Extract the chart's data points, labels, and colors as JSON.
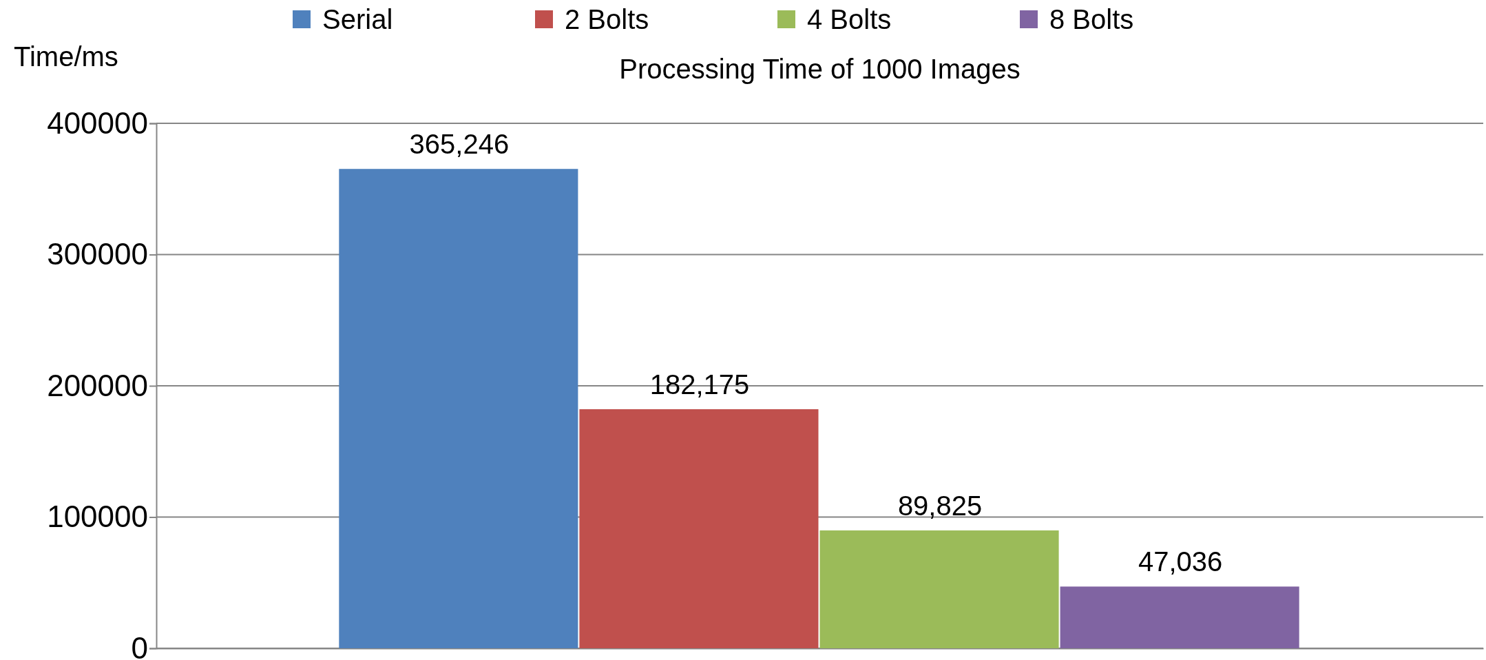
{
  "chart_data": {
    "type": "bar",
    "title": "Processing Time of 1000 Images",
    "ylabel": "Time/ms",
    "categories": [
      null
    ],
    "series": [
      {
        "name": "Serial",
        "color": "#4f81bd",
        "values": [
          365246
        ],
        "value_labels": [
          "365,246"
        ]
      },
      {
        "name": "2 Bolts",
        "color": "#c0504d",
        "values": [
          182175
        ],
        "value_labels": [
          "182,175"
        ]
      },
      {
        "name": "4 Bolts",
        "color": "#9bbb59",
        "values": [
          89825
        ],
        "value_labels": [
          "89,825"
        ]
      },
      {
        "name": "8 Bolts",
        "color": "#8064a2",
        "values": [
          47036
        ],
        "value_labels": [
          "47,036"
        ]
      }
    ],
    "ylim": [
      0,
      400000
    ],
    "yticks": [
      0,
      100000,
      200000,
      300000,
      400000
    ],
    "grid": "y",
    "legend": "top"
  }
}
